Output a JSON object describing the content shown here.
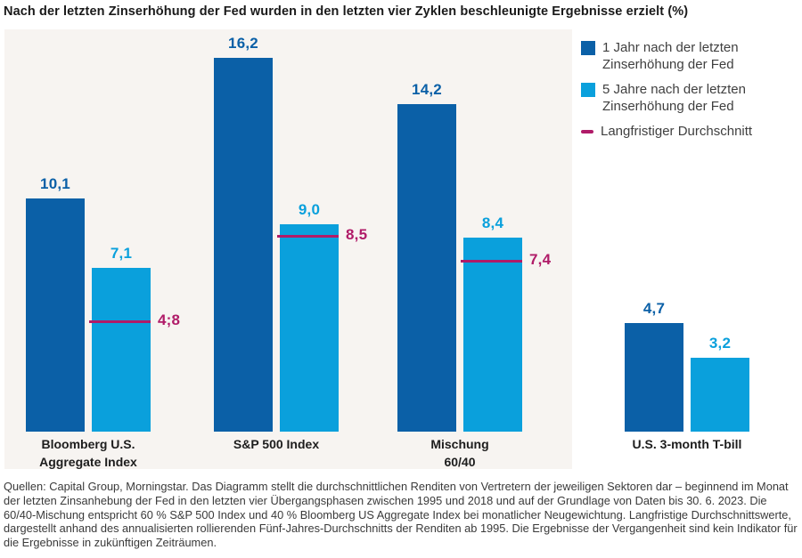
{
  "title": "Nach der letzten Zinserhöhung der Fed wurden in den letzten vier Zyklen beschleunigte Ergebnisse erzielt (%)",
  "colors": {
    "bar_1yr": "#0b60a7",
    "bar_5yr": "#0aa0dc",
    "longterm_line": "#b01b68",
    "panel_background": "#f7f4f1"
  },
  "legend": {
    "items": [
      {
        "label": "1 Jahr nach der letzten Zinserhöhung der Fed",
        "marker": "square",
        "color": "#0b60a7"
      },
      {
        "label": "5 Jahre nach der letzten Zinserhöhung der Fed",
        "marker": "square",
        "color": "#0aa0dc"
      },
      {
        "label": "Langfristiger Durchschnitt",
        "marker": "dash",
        "color": "#b01b68"
      }
    ]
  },
  "chart_data": {
    "type": "bar",
    "categories": [
      "Bloomberg U.S.\nAggregate Index",
      "S&P 500 Index",
      "Mischung\n60/40",
      "U.S. 3-month T-bill"
    ],
    "series": [
      {
        "name": "1 Jahr nach der letzten Zinserhöhung der Fed",
        "values": [
          10.1,
          16.2,
          14.2,
          4.7
        ],
        "labels": [
          "10,1",
          "16,2",
          "14,2",
          "4,7"
        ],
        "color": "#0b60a7"
      },
      {
        "name": "5 Jahre nach der letzten Zinserhöhung der Fed",
        "values": [
          7.1,
          9.0,
          8.4,
          3.2
        ],
        "labels": [
          "7,1",
          "9,0",
          "8,4",
          "3,2"
        ],
        "color": "#0aa0dc"
      }
    ],
    "reference_lines": {
      "name": "Langfristiger Durchschnitt",
      "values": [
        4.8,
        8.5,
        7.4,
        null
      ],
      "labels": [
        "4;8",
        "8,5",
        "7,4",
        null
      ],
      "color": "#b01b68"
    },
    "unit": "%",
    "ylim": [
      0,
      17.5
    ],
    "grid": false,
    "legend_position": "top-right"
  },
  "footer": "Quellen: Capital Group, Morningstar. Das Diagramm stellt die durchschnittlichen Renditen von Vertretern der jeweiligen Sektoren dar – beginnend im Monat der letzten Zinsanhebung der Fed in den letzten vier Übergangsphasen zwischen 1995 und 2018 und auf der Grundlage von Daten bis 30. 6. 2023. Die 60/40-Mischung entspricht 60 % S&P 500 Index und 40 % Bloomberg US Aggregate Index bei monatlicher Neugewichtung. Langfristige Durchschnittswerte, dargestellt anhand des annualisierten rollierenden Fünf-Jahres-Durchschnitts der Renditen ab 1995. Die Ergebnisse der Vergangenheit sind kein Indikator für die Ergebnisse in zukünftigen Zeiträumen."
}
